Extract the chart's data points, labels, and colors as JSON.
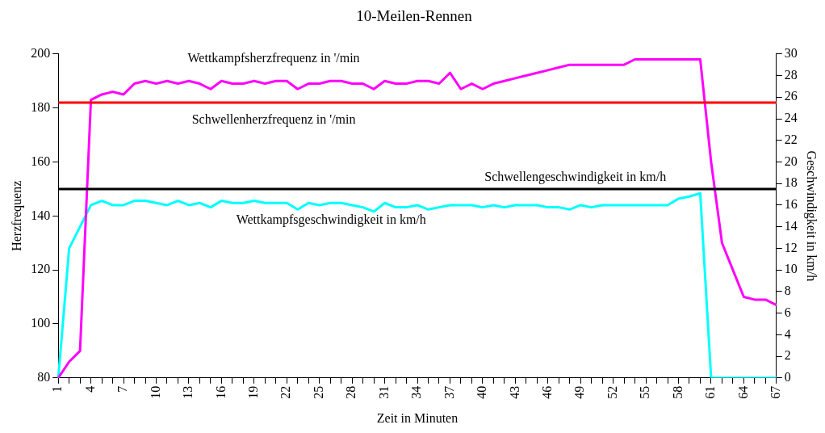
{
  "chart_data": {
    "type": "line",
    "title": "10-Meilen-Rennen",
    "xlabel": "Zeit in Minuten",
    "ylabel": "Herzfrequenz",
    "y2label": "Geschwindigkeit in km/h",
    "categories": [
      "1",
      null,
      null,
      "4",
      null,
      null,
      "7",
      null,
      null,
      "10",
      null,
      null,
      "13",
      null,
      null,
      "16",
      null,
      null,
      "19",
      null,
      null,
      "22",
      null,
      null,
      "25",
      null,
      null,
      "28",
      null,
      null,
      "31",
      null,
      null,
      "34",
      null,
      null,
      "37",
      null,
      null,
      "40",
      null,
      null,
      "43",
      null,
      null,
      "46",
      null,
      null,
      "49",
      null,
      null,
      "52",
      null,
      null,
      "55",
      null,
      null,
      "58",
      null,
      null,
      "61",
      null,
      null,
      "64",
      null,
      null,
      "67"
    ],
    "series": [
      {
        "name": "Wettkampfsherzfrequenz in '/min",
        "color": "#ff00ff",
        "values": [
          80,
          86,
          90,
          183,
          185,
          186,
          185,
          189,
          190,
          189,
          190,
          189,
          190,
          189,
          187,
          190,
          189,
          189,
          190,
          189,
          190,
          190,
          187,
          189,
          189,
          190,
          190,
          189,
          189,
          187,
          190,
          189,
          189,
          190,
          190,
          189,
          193,
          187,
          189,
          187,
          189,
          190,
          191,
          192,
          193,
          194,
          195,
          196,
          196,
          196,
          196,
          196,
          196,
          198,
          198,
          198,
          198,
          198,
          198,
          198,
          160,
          130,
          120,
          110,
          109,
          109,
          107
        ]
      },
      {
        "name": "Wettkampfsgeschwindigkeit in km/h",
        "color": "#00ffff",
        "axis": "y2",
        "values": [
          0,
          12,
          14,
          16,
          16.4,
          16,
          16,
          16.4,
          16.4,
          16.2,
          16,
          16.4,
          16,
          16.2,
          15.8,
          16.4,
          16.2,
          16.2,
          16.4,
          16.2,
          16.2,
          16.2,
          15.6,
          16.2,
          16,
          16.2,
          16.2,
          16,
          15.8,
          15.4,
          16.2,
          15.8,
          15.8,
          16,
          15.6,
          15.8,
          16,
          16,
          16,
          15.8,
          16,
          15.8,
          16,
          16,
          16,
          15.8,
          15.8,
          15.6,
          16,
          15.8,
          16,
          16,
          16,
          16,
          16,
          16,
          16,
          16.6,
          16.8,
          17.1,
          0,
          0,
          0,
          0,
          0,
          0,
          0
        ]
      }
    ],
    "ylim": [
      80,
      200
    ],
    "yticks": [
      80,
      100,
      120,
      140,
      160,
      180,
      200
    ],
    "y2lim": [
      0,
      30
    ],
    "y2ticks": [
      0,
      2,
      4,
      6,
      8,
      10,
      12,
      14,
      16,
      18,
      20,
      22,
      24,
      26,
      28,
      30
    ],
    "ref_lines": [
      {
        "axis": "y",
        "value": 182,
        "label": "Schwellenherzfrequenz in '/min",
        "color": "#ff0000"
      },
      {
        "axis": "y2",
        "value": 17.5,
        "label": "Schwellengeschwindigkeit in km/h",
        "color": "#000000"
      }
    ],
    "grid": false,
    "legend": false,
    "marker": "none",
    "line_style": "solid"
  }
}
